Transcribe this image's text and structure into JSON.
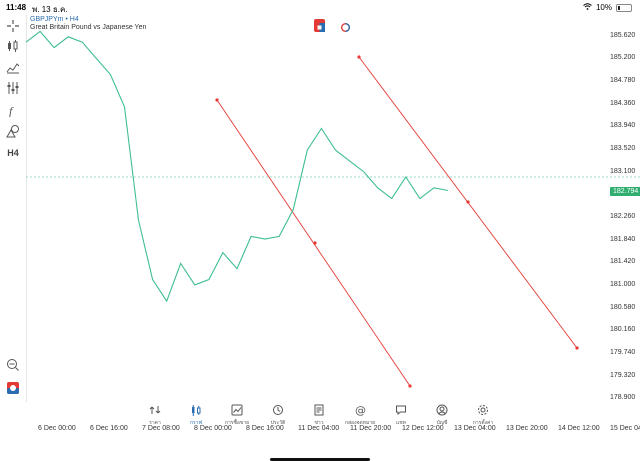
{
  "status": {
    "time": "11:48",
    "date": "พ. 13 ธ.ค.",
    "battery": "10%"
  },
  "chart": {
    "symbol": "GBPJPYm",
    "timeframe": "H4",
    "description": "Great Britain Pound vs Japanese Yen",
    "current_price": "182.794",
    "line_color": "#3fbf8f",
    "trendline_color": "#e53935"
  },
  "toolbar": {
    "items": [
      "crosshair-icon",
      "candles-icon",
      "indicators-icon",
      "settings-sliders-icon",
      "function-icon",
      "shapes-icon",
      "timeframe-label"
    ],
    "timeframe_label": "H4"
  },
  "chart_data": {
    "type": "line",
    "series": [
      {
        "x": [
          "6 Dec 00:00",
          "6 Dec 04:00",
          "6 Dec 08:00",
          "6 Dec 12:00",
          "6 Dec 16:00",
          "6 Dec 20:00",
          "7 Dec 00:00",
          "7 Dec 04:00",
          "7 Dec 08:00",
          "7 Dec 12:00",
          "7 Dec 16:00",
          "7 Dec 20:00",
          "8 Dec 00:00",
          "8 Dec 04:00",
          "8 Dec 08:00",
          "8 Dec 12:00",
          "8 Dec 16:00",
          "8 Dec 20:00",
          "11 Dec 00:00",
          "11 Dec 04:00",
          "11 Dec 08:00",
          "11 Dec 12:00",
          "11 Dec 16:00",
          "11 Dec 20:00",
          "12 Dec 00:00",
          "12 Dec 04:00",
          "12 Dec 08:00",
          "12 Dec 12:00",
          "12 Dec 16:00",
          "12 Dec 20:00",
          "13 Dec 00:00"
        ],
        "values": [
          185.5,
          185.7,
          185.4,
          185.6,
          185.5,
          185.2,
          184.9,
          184.3,
          182.2,
          181.1,
          180.7,
          181.4,
          181.0,
          181.1,
          181.6,
          181.3,
          181.9,
          181.85,
          181.9,
          182.4,
          183.5,
          183.9,
          183.5,
          183.3,
          183.1,
          182.8,
          182.6,
          183.0,
          182.6,
          182.8,
          182.75
        ]
      }
    ],
    "y_ticks": [
      "185.620",
      "185.200",
      "184.780",
      "184.360",
      "183.940",
      "183.520",
      "183.100",
      "182.680",
      "182.260",
      "181.840",
      "181.420",
      "181.000",
      "180.580",
      "180.160",
      "179.740",
      "179.320",
      "178.900"
    ],
    "x_ticks": [
      "6 Dec 00:00",
      "6 Dec 16:00",
      "7 Dec 08:00",
      "8 Dec 00:00",
      "8 Dec 16:00",
      "11 Dec 04:00",
      "11 Dec 20:00",
      "12 Dec 12:00",
      "13 Dec 04:00",
      "13 Dec 20:00",
      "14 Dec 12:00",
      "15 Dec 04:00"
    ],
    "ylim": [
      178.7,
      185.8
    ],
    "grid": false
  },
  "bottom_nav": {
    "items": [
      {
        "icon": "quotes-icon",
        "label": "ราคา"
      },
      {
        "icon": "chart-icon",
        "label": "กราฟ"
      },
      {
        "icon": "trade-icon",
        "label": "การซื้อขาย"
      },
      {
        "icon": "history-icon",
        "label": "ประวัติ"
      },
      {
        "icon": "news-icon",
        "label": "ข่าว"
      },
      {
        "icon": "mailbox-icon",
        "label": "กล่องจดหมาย"
      },
      {
        "icon": "chat-icon",
        "label": "แชท"
      },
      {
        "icon": "account-icon",
        "label": "บัญชี"
      },
      {
        "icon": "settings-icon",
        "label": "การตั้งค่า"
      }
    ],
    "active_index": 1
  }
}
